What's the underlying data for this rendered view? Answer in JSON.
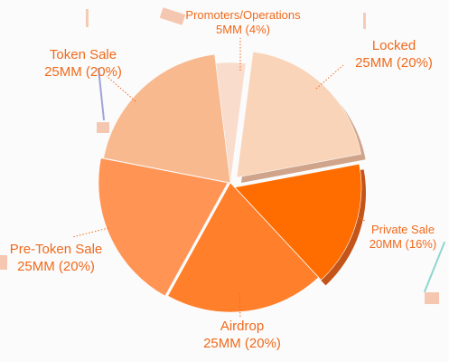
{
  "chart_data": {
    "type": "pie",
    "slices": [
      {
        "name": "Promoters/Operations",
        "value": 4,
        "display": "5MM (4%)",
        "color": "#f9dccb"
      },
      {
        "name": "Locked",
        "value": 20,
        "display": "25MM (20%)",
        "color": "#f9d4b8"
      },
      {
        "name": "Private Sale",
        "value": 16,
        "display": "20MM (16%)",
        "color": "#ff6d00"
      },
      {
        "name": "Airdrop",
        "value": 20,
        "display": "25MM (20%)",
        "color": "#ff7f2a"
      },
      {
        "name": "Pre-Token Sale",
        "value": 20,
        "display": "25MM (20%)",
        "color": "#ff9455"
      },
      {
        "name": "Token Sale",
        "value": 20,
        "display": "25MM (20%)",
        "color": "#f8b98f"
      }
    ],
    "label_color": "#f06a1c"
  }
}
